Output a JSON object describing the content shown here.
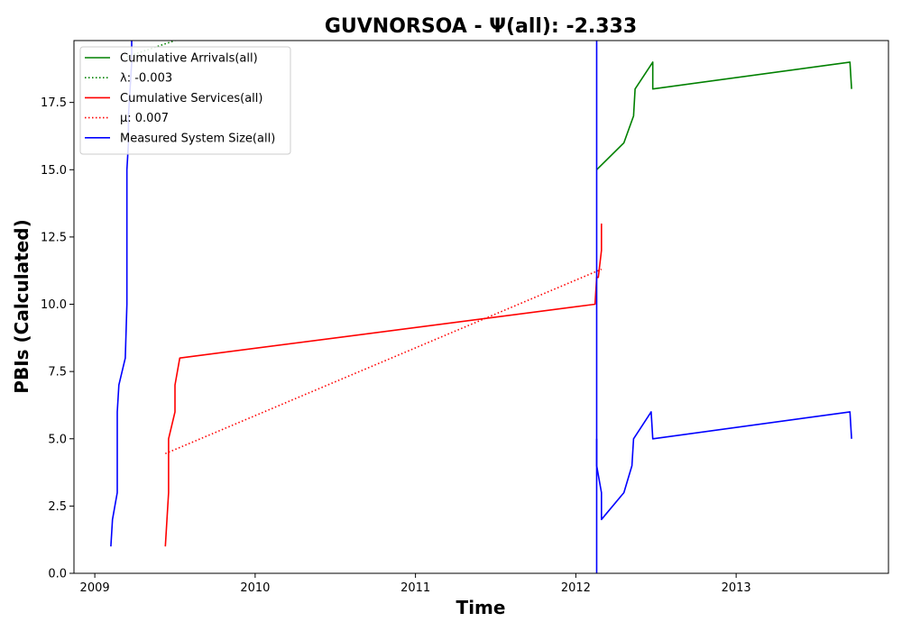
{
  "chart_data": {
    "type": "line",
    "title": "GUVNORSOA -  Ψ(all): -2.333",
    "xlabel": "Time",
    "ylabel": "PBIs (Calculated)",
    "xlim": [
      2008.87,
      2013.95
    ],
    "ylim": [
      0,
      19.8
    ],
    "xticks": [
      2009,
      2010,
      2011,
      2012,
      2013
    ],
    "xtick_labels": [
      "2009",
      "2010",
      "2011",
      "2012",
      "2013"
    ],
    "yticks": [
      0.0,
      2.5,
      5.0,
      7.5,
      10.0,
      12.5,
      15.0,
      17.5
    ],
    "ytick_labels": [
      "0.0",
      "2.5",
      "5.0",
      "7.5",
      "10.0",
      "12.5",
      "15.0",
      "17.5"
    ],
    "grid": false,
    "legend_position": "top-left",
    "series": [
      {
        "name": "Cumulative Arrivals(all)",
        "color": "#008000",
        "style": "solid",
        "x": [
          2012.13,
          2012.3,
          2012.36,
          2012.37,
          2012.48,
          2012.48,
          2013.71,
          2013.72
        ],
        "y": [
          15,
          16,
          17,
          18,
          19,
          18,
          19,
          18
        ]
      },
      {
        "name": "λ: -0.003",
        "color": "#008000",
        "style": "dotted",
        "x": [
          2009.2,
          2009.5
        ],
        "y": [
          19.2,
          19.8
        ]
      },
      {
        "name": "Cumulative Services(all)",
        "color": "#ff0000",
        "style": "solid",
        "x": [
          2009.44,
          2009.45,
          2009.46,
          2009.46,
          2009.5,
          2009.5,
          2009.53,
          2012.12,
          2012.13,
          2012.14,
          2012.16,
          2012.16
        ],
        "y": [
          1,
          2,
          3,
          5,
          6,
          7,
          8,
          10,
          11,
          11,
          12,
          13
        ]
      },
      {
        "name": "μ: 0.007",
        "color": "#ff0000",
        "style": "dotted",
        "x": [
          2009.44,
          2012.16
        ],
        "y": [
          4.45,
          11.3
        ]
      },
      {
        "name": "Measured System Size(all)",
        "color": "#0000ff",
        "style": "solid",
        "x": [
          2009.1,
          2009.11,
          2009.14,
          2009.14,
          2009.15,
          2009.19,
          2009.2,
          2009.2,
          2009.21,
          2009.21,
          2009.22,
          2009.23,
          2009.23
        ],
        "y": [
          1,
          2,
          3,
          6,
          7,
          8,
          10,
          15,
          16,
          17,
          18,
          19,
          19.8
        ]
      },
      {
        "name": "",
        "color": "#0000ff",
        "style": "solid",
        "x": [
          2012.13,
          2012.13
        ],
        "y": [
          0,
          19.8
        ]
      },
      {
        "name": "",
        "color": "#0000ff",
        "style": "solid",
        "x": [
          2012.13,
          2012.13,
          2012.16,
          2012.16,
          2012.3,
          2012.35,
          2012.36,
          2012.47,
          2012.48,
          2013.71,
          2013.72
        ],
        "y": [
          5,
          4,
          3,
          2,
          3,
          4,
          5,
          6,
          5,
          6,
          5
        ]
      }
    ]
  }
}
